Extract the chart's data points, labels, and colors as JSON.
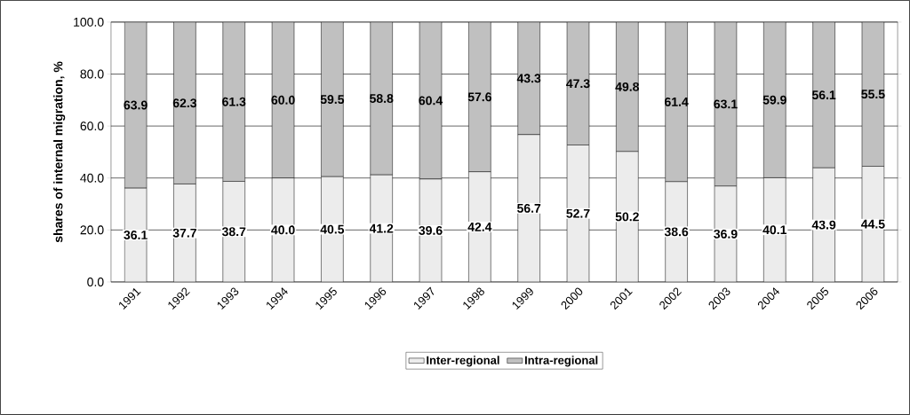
{
  "chart_data": {
    "type": "bar",
    "stacked": true,
    "ylabel": "shares of internal migration, %",
    "categories": [
      "1991",
      "1992",
      "1993",
      "1994",
      "1995",
      "1996",
      "1997",
      "1998",
      "1999",
      "2000",
      "2001",
      "2002",
      "2003",
      "2004",
      "2005",
      "2006"
    ],
    "series": [
      {
        "name": "Inter-regional",
        "color": "#ececec",
        "values": [
          36.1,
          37.7,
          38.7,
          40.0,
          40.5,
          41.2,
          39.6,
          42.4,
          56.7,
          52.7,
          50.2,
          38.6,
          36.9,
          40.1,
          43.9,
          44.5
        ],
        "value_labels": [
          "36.1",
          "37.7",
          "38.7",
          "40.0",
          "40.5",
          "41.2",
          "39.6",
          "42.4",
          "56.7",
          "52.7",
          "50.2",
          "38.6",
          "36.9",
          "40.1",
          "43.9",
          "44.5"
        ]
      },
      {
        "name": "Intra-regional",
        "color": "#c0c0c0",
        "values": [
          63.9,
          62.3,
          61.3,
          60.0,
          59.5,
          58.8,
          60.4,
          57.6,
          43.3,
          47.3,
          49.8,
          61.4,
          63.1,
          59.9,
          56.1,
          55.5
        ],
        "value_labels": [
          "63.9",
          "62.3",
          "61.3",
          "60.0",
          "59.5",
          "58.8",
          "60.4",
          "57.6",
          "43.3",
          "47.3",
          "49.8",
          "61.4",
          "63.1",
          "59.9",
          "56.1",
          "55.5"
        ]
      }
    ],
    "ylim": [
      0,
      100
    ],
    "yticks": [
      {
        "value": 0,
        "label": "0.0"
      },
      {
        "value": 20,
        "label": "20.0"
      },
      {
        "value": 40,
        "label": "40.0"
      },
      {
        "value": 60,
        "label": "60.0"
      },
      {
        "value": 80,
        "label": "80.0"
      },
      {
        "value": 100,
        "label": "100.0"
      }
    ],
    "grid": "y",
    "legend": "bottom"
  }
}
